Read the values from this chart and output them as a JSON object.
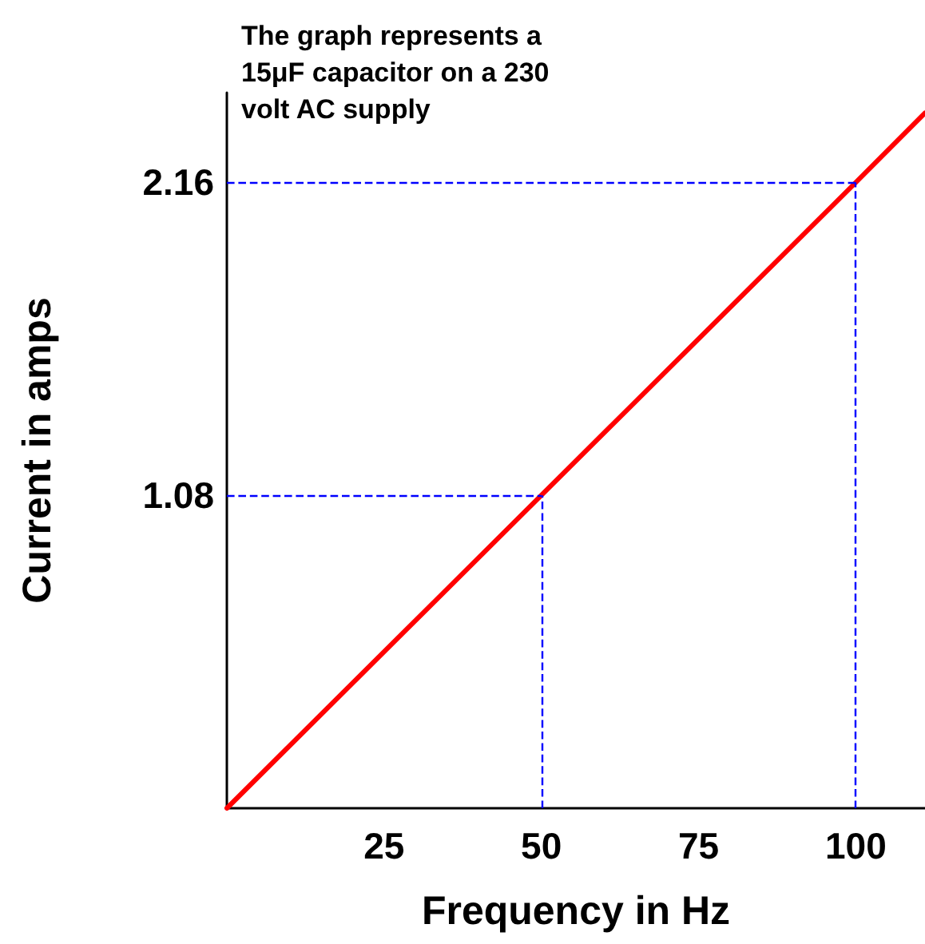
{
  "chart_data": {
    "type": "line",
    "title": "The graph represents a 15μF capacitor on a 230 volt AC supply",
    "xlabel": "Frequency in Hz",
    "ylabel": "Current in amps",
    "x": [
      0,
      50,
      100,
      111
    ],
    "series": [
      {
        "color": "#ff0000",
        "values": [
          0,
          1.08,
          2.16,
          2.4
        ]
      }
    ],
    "xlim": [
      0,
      111
    ],
    "xticks": [
      25,
      50,
      75,
      100
    ],
    "ylim": [
      0,
      2.47
    ],
    "yticks": [
      1.08,
      2.16
    ],
    "grid": false,
    "marker": "none",
    "line_style": "solid",
    "ref_lines": [
      {
        "axis": "x",
        "value": 50,
        "color": "#0000ff",
        "line_style": "dashed"
      },
      {
        "axis": "x",
        "value": 100,
        "color": "#0000ff",
        "line_style": "dashed"
      },
      {
        "axis": "y",
        "value": 1.08,
        "color": "#0000ff",
        "line_style": "dashed"
      },
      {
        "axis": "y",
        "value": 2.16,
        "color": "#0000ff",
        "line_style": "dashed"
      }
    ]
  }
}
